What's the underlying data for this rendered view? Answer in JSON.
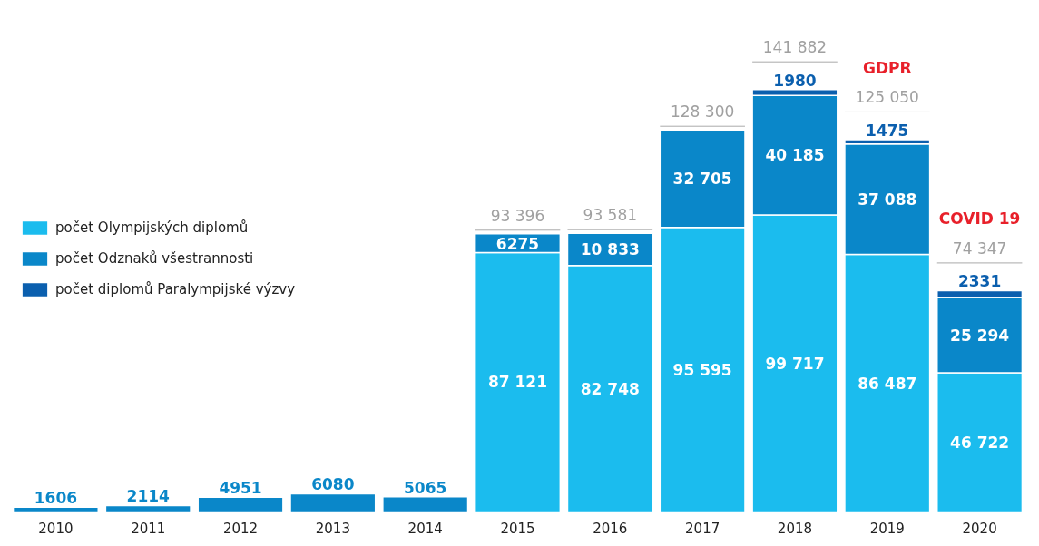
{
  "chart_data": {
    "type": "bar",
    "stacked": true,
    "categories": [
      "2010",
      "2011",
      "2012",
      "2013",
      "2014",
      "2015",
      "2016",
      "2017",
      "2018",
      "2019",
      "2020"
    ],
    "series": [
      {
        "name": "počet Olympijských diplomů",
        "color": "#1bbcee",
        "values": [
          null,
          null,
          null,
          null,
          null,
          87121,
          82748,
          95595,
          99717,
          86487,
          46722
        ],
        "value_labels": [
          null,
          null,
          null,
          null,
          null,
          "87 121",
          "82 748",
          "95 595",
          "99 717",
          "86 487",
          "46 722"
        ]
      },
      {
        "name": "počet Odznaků všestrannosti",
        "color": "#0a87c9",
        "values": [
          1606,
          2114,
          4951,
          6080,
          5065,
          6275,
          10833,
          32705,
          40185,
          37088,
          25294
        ],
        "value_labels": [
          "1606",
          "2114",
          "4951",
          "6080",
          "5065",
          "6275",
          "10 833",
          "32 705",
          "40 185",
          "37 088",
          "25 294"
        ]
      },
      {
        "name": "počet diplomů Paralympijské výzvy",
        "color": "#0b5fae",
        "values": [
          null,
          null,
          null,
          null,
          null,
          null,
          null,
          null,
          1980,
          1475,
          2331
        ],
        "value_labels": [
          null,
          null,
          null,
          null,
          null,
          null,
          null,
          null,
          "1980",
          "1475",
          "2331"
        ]
      }
    ],
    "totals": [
      null,
      null,
      null,
      null,
      null,
      "93 396",
      "93 581",
      "128 300",
      "141 882",
      "125 050",
      "74 347"
    ],
    "annotations": [
      "GDPR",
      "COVID 19"
    ],
    "legend": "left",
    "grid": false
  }
}
